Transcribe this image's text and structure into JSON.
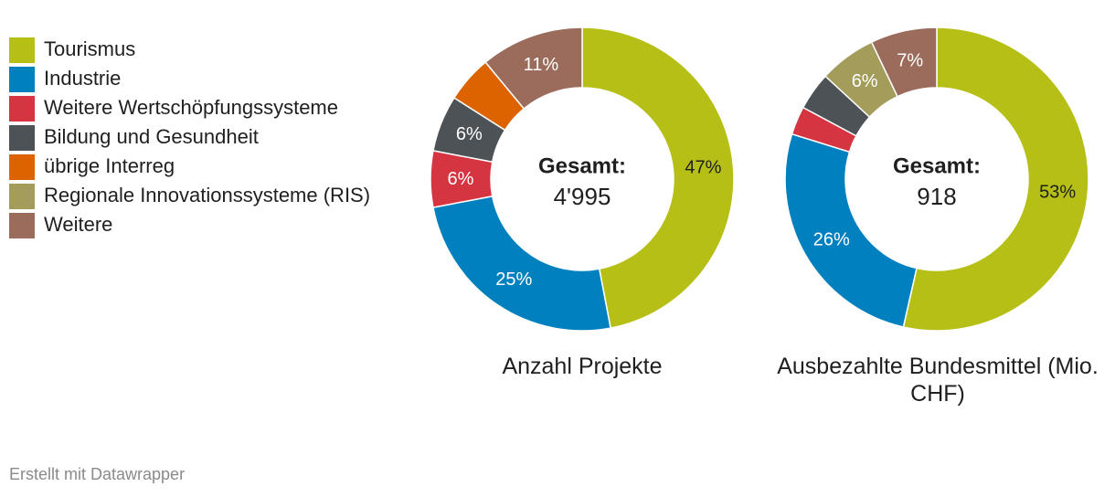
{
  "legend": [
    {
      "label": "Tourismus",
      "color": "#b5bf16"
    },
    {
      "label": "Industrie",
      "color": "#0080bf"
    },
    {
      "label": "Weitere Wertschöpfungssysteme",
      "color": "#d43541"
    },
    {
      "label": "Bildung und Gesundheit",
      "color": "#4c5256"
    },
    {
      "label": "übrige Interreg",
      "color": "#dc6300"
    },
    {
      "label": "Regionale Innovationssysteme (RIS)",
      "color": "#a39c5b"
    },
    {
      "label": "Weitere",
      "color": "#9b6c5b"
    }
  ],
  "chart_data": [
    {
      "type": "pie",
      "donut": true,
      "title": "Anzahl Projekte",
      "center_label": "Gesamt:",
      "center_value": "4'995",
      "categories": [
        "Tourismus",
        "Industrie",
        "Weitere Wertschöpfungssysteme",
        "Bildung und Gesundheit",
        "übrige Interreg",
        "Regionale Innovationssysteme (RIS)",
        "Weitere"
      ],
      "values": [
        47,
        25,
        6,
        6,
        5,
        0,
        11
      ],
      "data_labels": [
        "47%",
        "25%",
        "6%",
        "6%",
        "",
        "",
        "11%"
      ]
    },
    {
      "type": "pie",
      "donut": true,
      "title": "Ausbezahlte Bundesmittel (Mio. CHF)",
      "center_label": "Gesamt:",
      "center_value": "918",
      "categories": [
        "Tourismus",
        "Industrie",
        "Weitere Wertschöpfungssysteme",
        "Bildung und Gesundheit",
        "übrige Interreg",
        "Regionale Innovationssysteme (RIS)",
        "Weitere"
      ],
      "values": [
        53,
        26,
        3,
        4,
        0,
        6,
        7
      ],
      "data_labels": [
        "53%",
        "26%",
        "",
        "",
        "",
        "6%",
        "7%"
      ]
    }
  ],
  "footer": "Erstellt mit Datawrapper"
}
